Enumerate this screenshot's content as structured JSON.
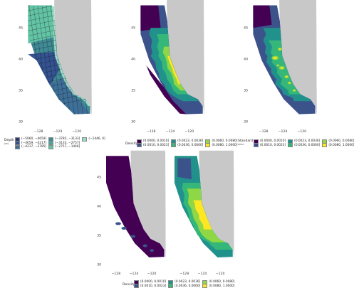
{
  "palette": {
    "land": "#c8c8c8",
    "viridis": [
      "#440154",
      "#3b528b",
      "#21918c",
      "#5ec962",
      "#fde725"
    ]
  },
  "chart_data": [
    {
      "id": "depth",
      "type": "heatmap",
      "title": "",
      "legend_title": "Depth",
      "legend_subtitle": "(m)",
      "x_ticks": [
        "−128",
        "−124",
        "−120"
      ],
      "y_ticks": [
        "45",
        "40",
        "35",
        "30"
      ],
      "xlim": [
        -131,
        -117
      ],
      "ylim": [
        29,
        49
      ],
      "legend_placement": "bottom",
      "grid": true,
      "bins": [
        "(−5060, −4659]",
        "(−4659, −4217]",
        "(−4217, −3785]",
        "(−3785, −3133]",
        "(−3133, −2757]",
        "(−2757, −1446]",
        "(−1446, 0]"
      ],
      "bin_colors": [
        "#2b3a6e",
        "#33528f",
        "#3e6f98",
        "#3f8a95",
        "#46a79a",
        "#62c3a5",
        "#98dcc4"
      ]
    },
    {
      "id": "density",
      "type": "heatmap",
      "title": "",
      "legend_title": "Density",
      "x_ticks": [
        "−128",
        "−124",
        "−120"
      ],
      "y_ticks": [
        "45",
        "40",
        "35",
        "30"
      ],
      "xlim": [
        -131,
        -117
      ],
      "ylim": [
        29,
        49
      ],
      "legend_placement": "bottom",
      "grid": true,
      "bins": [
        "(0.0000, 0.0010]",
        "(0.0010, 0.0023]",
        "(0.0023, 0.0036]",
        "(0.0036, 0.0060]",
        "(0.0060, 0.0080]",
        "(0.0080, 1.0000]"
      ],
      "bin_colors": [
        "#440154",
        "#3b528b",
        "#21918c",
        "#35b779",
        "#8fd744",
        "#fde725"
      ]
    },
    {
      "id": "standard-error",
      "type": "heatmap",
      "title": "",
      "legend_title": "Standard",
      "legend_subtitle": "error",
      "x_ticks": [
        "−128",
        "−124",
        "−120"
      ],
      "y_ticks": [
        "45",
        "40",
        "35",
        "30"
      ],
      "xlim": [
        -131,
        -117
      ],
      "ylim": [
        29,
        49
      ],
      "legend_placement": "bottom",
      "grid": true,
      "bins": [
        "(0.0000, 0.0010]",
        "(0.0010, 0.0023]",
        "(0.0023, 0.0036]",
        "(0.0036, 0.0060]",
        "(0.0060, 0.0080]",
        "(0.0080, 1.0000]"
      ],
      "bin_colors": [
        "#440154",
        "#3b528b",
        "#21918c",
        "#35b779",
        "#8fd744",
        "#fde725"
      ]
    },
    {
      "id": "density-pair",
      "type": "heatmap",
      "title": "",
      "legend_title": "Density",
      "x_ticks": [
        "−128",
        "−124",
        "−120"
      ],
      "y_ticks": [
        "45",
        "40",
        "35",
        "30"
      ],
      "xlim": [
        -131,
        -117
      ],
      "ylim": [
        29,
        49
      ],
      "legend_placement": "bottom",
      "grid": true,
      "bins": [
        "(0.0000, 0.0010]",
        "(0.0010, 0.0023]",
        "(0.0023, 0.0036]",
        "(0.0036, 0.0060]",
        "(0.0060, 0.0080]",
        "(0.0080, 1.0000]"
      ],
      "bin_colors": [
        "#440154",
        "#3b528b",
        "#21918c",
        "#35b779",
        "#8fd744",
        "#fde725"
      ]
    }
  ]
}
